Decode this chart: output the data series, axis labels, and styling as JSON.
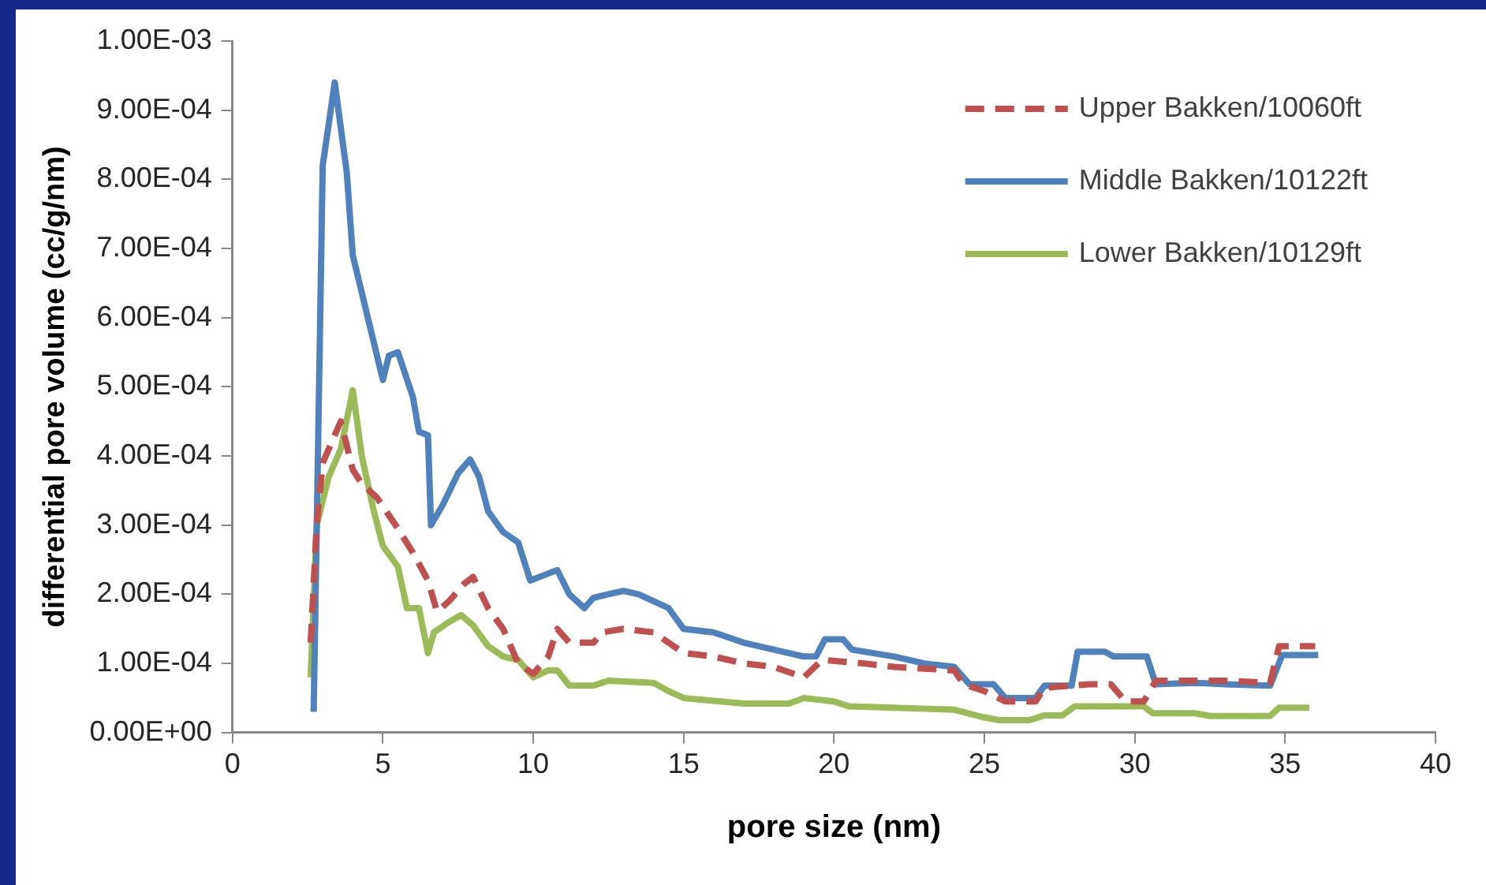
{
  "chart_data": {
    "type": "line",
    "xlabel": "pore size (nm)",
    "ylabel": "differential pore volume (cc/g/nm)",
    "xlim": [
      0,
      40
    ],
    "xticks": [
      0,
      5,
      10,
      15,
      20,
      25,
      30,
      35,
      40
    ],
    "ylim": [
      0,
      0.001
    ],
    "yticks": [
      {
        "value": 0,
        "label": "0.00E+00"
      },
      {
        "value": 0.0001,
        "label": "1.00E-04"
      },
      {
        "value": 0.0002,
        "label": "2.00E-04"
      },
      {
        "value": 0.0003,
        "label": "3.00E-04"
      },
      {
        "value": 0.0004,
        "label": "4.00E-04"
      },
      {
        "value": 0.0005,
        "label": "5.00E-04"
      },
      {
        "value": 0.0006,
        "label": "6.00E-04"
      },
      {
        "value": 0.0007,
        "label": "7.00E-04"
      },
      {
        "value": 0.0008,
        "label": "8.00E-04"
      },
      {
        "value": 0.0009,
        "label": "9.00E-04"
      },
      {
        "value": 0.001,
        "label": "1.00E-03"
      }
    ],
    "grid": false,
    "legend": "top right",
    "marker": "none",
    "series": [
      {
        "name": "Upper Bakken/10060ft",
        "color": "#c0504d",
        "line_style": "dashed",
        "x": [
          2.6,
          2.8,
          3.0,
          3.3,
          3.6,
          4.0,
          4.3,
          4.8,
          5.5,
          6.0,
          6.5,
          6.8,
          7.2,
          7.7,
          8.0,
          8.5,
          9.0,
          9.5,
          10.0,
          10.5,
          10.8,
          11.2,
          12,
          12.3,
          13,
          14,
          14.5,
          15,
          16,
          17,
          18,
          19,
          19.6,
          21,
          22,
          24,
          24.3,
          25,
          25.7,
          26.7,
          27,
          28.5,
          29.2,
          29.7,
          30.3,
          30.7,
          33,
          34.5,
          34.8,
          36
        ],
        "values": [
          0.00013,
          0.0003,
          0.00039,
          0.00042,
          0.00045,
          0.00038,
          0.00036,
          0.00034,
          0.000295,
          0.00026,
          0.00022,
          0.000175,
          0.00019,
          0.000215,
          0.000225,
          0.00018,
          0.00015,
          0.0001,
          8.5e-05,
          0.00011,
          0.00015,
          0.00013,
          0.00013,
          0.000145,
          0.00015,
          0.000145,
          0.00013,
          0.000115,
          0.00011,
          0.0001,
          9.5e-05,
          8e-05,
          0.000105,
          0.0001,
          9.5e-05,
          9e-05,
          7e-05,
          6e-05,
          4.5e-05,
          4.5e-05,
          6.5e-05,
          7e-05,
          7e-05,
          4.5e-05,
          4.5e-05,
          7.5e-05,
          7.5e-05,
          7.2e-05,
          0.000125,
          0.000125
        ]
      },
      {
        "name": "Middle Bakken/10122ft",
        "color": "#4f81bd",
        "line_style": "solid",
        "x": [
          2.7,
          3.0,
          3.4,
          3.8,
          4.0,
          4.5,
          5.0,
          5.2,
          5.5,
          6.0,
          6.2,
          6.5,
          6.6,
          7.0,
          7.5,
          7.9,
          8.2,
          8.5,
          9.0,
          9.5,
          9.9,
          10.5,
          10.8,
          11.2,
          11.7,
          12.0,
          12.5,
          13.0,
          13.5,
          14.0,
          14.5,
          15.0,
          16,
          17,
          18,
          19,
          19.4,
          19.7,
          20.3,
          20.6,
          22,
          23,
          24,
          24.5,
          25.3,
          25.7,
          26.7,
          27.0,
          27.9,
          28.1,
          29,
          29.3,
          30.4,
          30.7,
          32,
          33,
          34.5,
          34.9,
          36.1
        ],
        "values": [
          3e-05,
          0.00082,
          0.00094,
          0.00081,
          0.00069,
          0.0006,
          0.00051,
          0.000545,
          0.00055,
          0.000485,
          0.000435,
          0.00043,
          0.0003,
          0.00033,
          0.000375,
          0.000395,
          0.00037,
          0.00032,
          0.00029,
          0.000275,
          0.00022,
          0.00023,
          0.000235,
          0.0002,
          0.00018,
          0.000195,
          0.0002,
          0.000205,
          0.0002,
          0.00019,
          0.00018,
          0.00015,
          0.000145,
          0.00013,
          0.00012,
          0.00011,
          0.00011,
          0.000135,
          0.000135,
          0.00012,
          0.00011,
          0.0001,
          9.5e-05,
          7e-05,
          7e-05,
          5e-05,
          5e-05,
          6.8e-05,
          6.8e-05,
          0.000117,
          0.000117,
          0.00011,
          0.00011,
          7e-05,
          7.2e-05,
          7e-05,
          6.8e-05,
          0.000112,
          0.000112
        ]
      },
      {
        "name": "Lower Bakken/10129ft",
        "color": "#9bbb59",
        "line_style": "solid",
        "x": [
          2.6,
          2.8,
          3.2,
          3.6,
          4.0,
          4.3,
          4.7,
          5.0,
          5.5,
          5.8,
          6.2,
          6.5,
          6.7,
          7.2,
          7.6,
          8.0,
          8.5,
          9.0,
          9.5,
          10.0,
          10.5,
          10.8,
          11.2,
          12,
          12.5,
          14,
          14.5,
          15,
          17,
          18.5,
          19,
          20,
          20.5,
          22,
          24,
          25,
          25.5,
          26.5,
          27,
          27.6,
          28,
          30.3,
          30.6,
          32,
          32.5,
          34.5,
          34.8,
          35.8
        ],
        "values": [
          8e-05,
          0.0003,
          0.00037,
          0.00041,
          0.000495,
          0.0004,
          0.00032,
          0.00027,
          0.00024,
          0.00018,
          0.00018,
          0.000115,
          0.000145,
          0.00016,
          0.00017,
          0.000155,
          0.000125,
          0.00011,
          0.000105,
          8e-05,
          9e-05,
          9e-05,
          6.8e-05,
          6.8e-05,
          7.5e-05,
          7.2e-05,
          6e-05,
          5e-05,
          4.2e-05,
          4.2e-05,
          5e-05,
          4.5e-05,
          3.8e-05,
          3.6e-05,
          3.3e-05,
          2.2e-05,
          1.8e-05,
          1.8e-05,
          2.5e-05,
          2.5e-05,
          3.8e-05,
          3.8e-05,
          2.8e-05,
          2.8e-05,
          2.4e-05,
          2.4e-05,
          3.6e-05,
          3.6e-05
        ]
      }
    ]
  }
}
